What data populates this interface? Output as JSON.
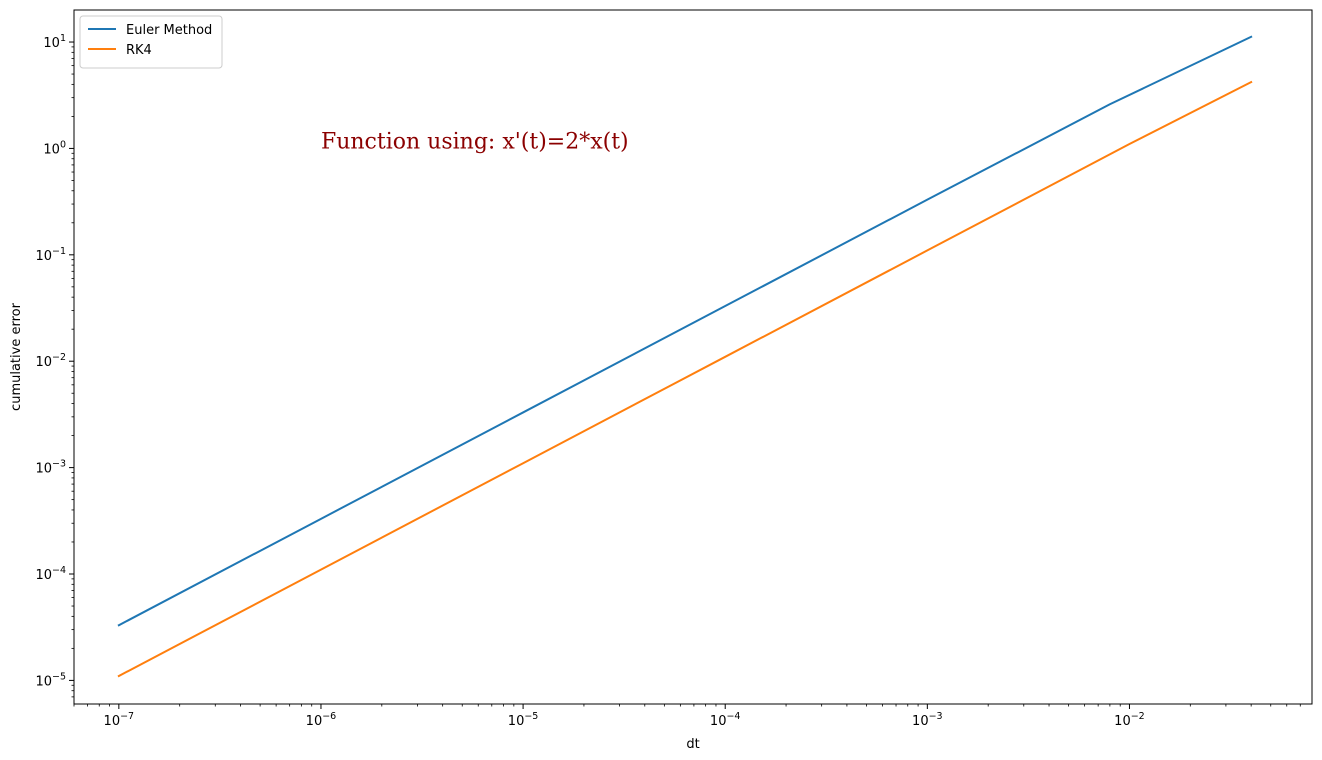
{
  "chart_data": {
    "type": "line",
    "xscale": "log",
    "yscale": "log",
    "xlabel": "dt",
    "ylabel": "cumulative error",
    "xlim": [
      6e-08,
      0.08
    ],
    "ylim": [
      6e-06,
      20
    ],
    "x_ticks": [
      {
        "value": 1e-07,
        "base": "10",
        "exp": "−7"
      },
      {
        "value": 1e-06,
        "base": "10",
        "exp": "−6"
      },
      {
        "value": 1e-05,
        "base": "10",
        "exp": "−5"
      },
      {
        "value": 0.0001,
        "base": "10",
        "exp": "−4"
      },
      {
        "value": 0.001,
        "base": "10",
        "exp": "−3"
      },
      {
        "value": 0.01,
        "base": "10",
        "exp": "−2"
      }
    ],
    "y_ticks": [
      {
        "value": 1e-05,
        "base": "10",
        "exp": "−5"
      },
      {
        "value": 0.0001,
        "base": "10",
        "exp": "−4"
      },
      {
        "value": 0.001,
        "base": "10",
        "exp": "−3"
      },
      {
        "value": 0.01,
        "base": "10",
        "exp": "−2"
      },
      {
        "value": 0.1,
        "base": "10",
        "exp": "−1"
      },
      {
        "value": 1,
        "base": "10",
        "exp": "0"
      },
      {
        "value": 10,
        "base": "10",
        "exp": "1"
      }
    ],
    "series": [
      {
        "name": "Euler Method",
        "color": "#1f77b4",
        "x": [
          1e-07,
          1e-06,
          1e-05,
          0.0001,
          0.001,
          0.008,
          0.04
        ],
        "y": [
          3.3e-05,
          0.00033,
          0.0033,
          0.033,
          0.33,
          2.6,
          11.2
        ]
      },
      {
        "name": "RK4",
        "color": "#ff7f0e",
        "x": [
          1e-07,
          1e-06,
          1e-05,
          0.0001,
          0.001,
          0.01,
          0.04
        ],
        "y": [
          1.1e-05,
          0.00011,
          0.0011,
          0.011,
          0.11,
          1.1,
          4.2
        ]
      }
    ],
    "legend": {
      "position": "top-left"
    },
    "annotation": {
      "text": "Function using: x'(t)=2*x(t)",
      "x": 1e-06,
      "y": 1,
      "color": "#8b0000"
    },
    "grid": false
  }
}
